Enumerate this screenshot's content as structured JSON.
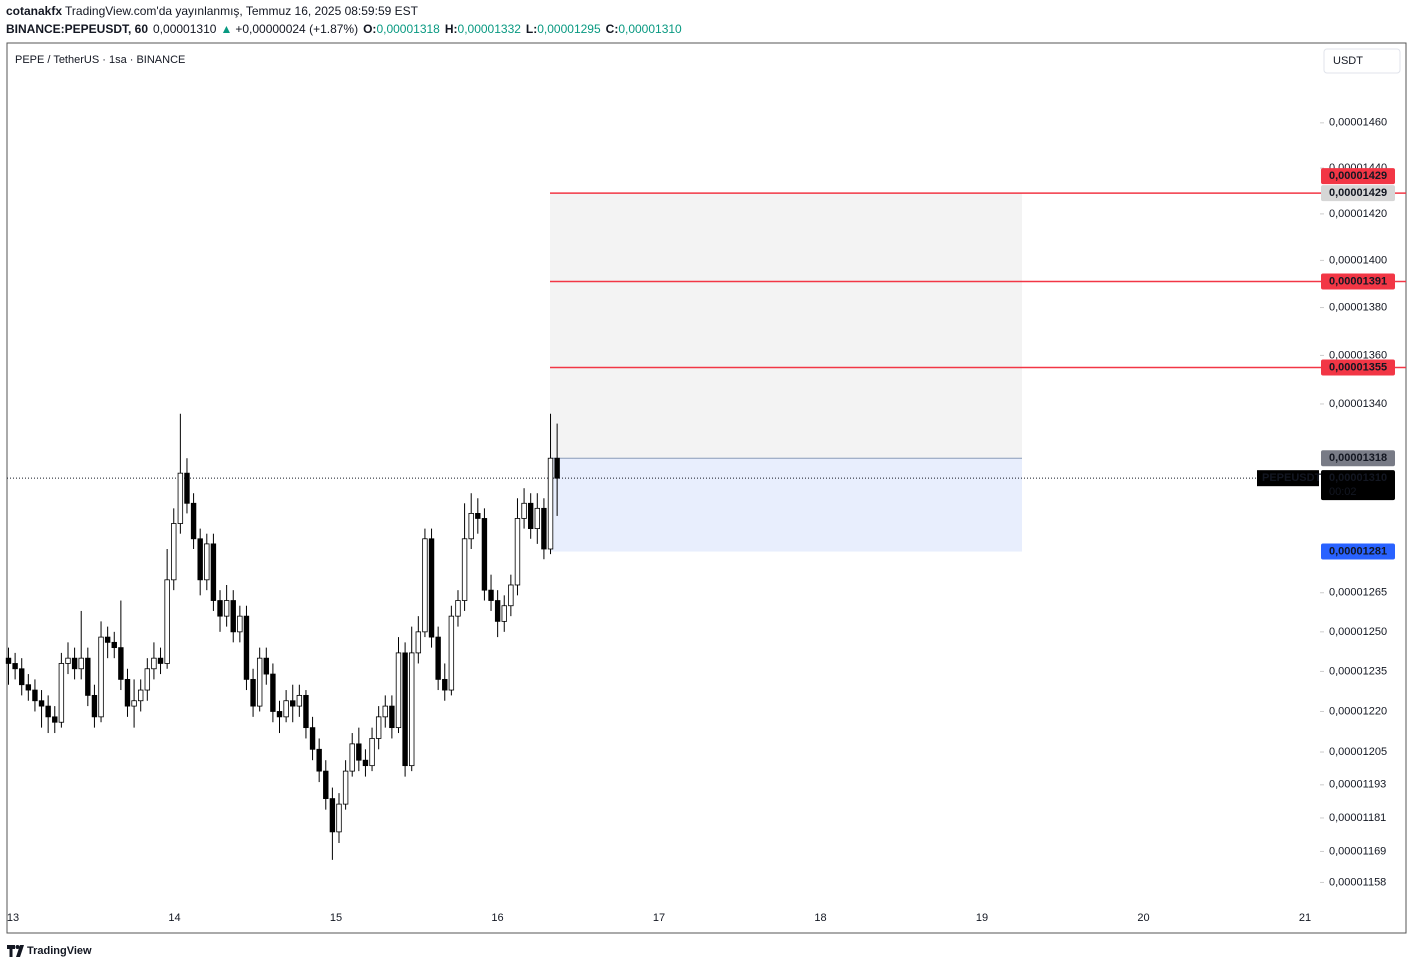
{
  "header": {
    "author": "cotanakfx",
    "published": "TradingView.com'da yayınlanmış, Temmuz 16, 2025 08:59:59 EST",
    "symbol": "BINANCE:PEPEUSDT, 60",
    "last": "0,00001310",
    "arrow": "▲",
    "change": "+0,00000024 (+1.87%)",
    "o_label": "O:",
    "o": "0,00001318",
    "h_label": "H:",
    "h": "0,00001332",
    "l_label": "L:",
    "l": "0,00001295",
    "c_label": "C:",
    "c": "0,00001310"
  },
  "chart_data": {
    "type": "candlestick",
    "title": "PEPE / TetherUS · 1sa · BINANCE",
    "currency": "USDT",
    "log_scale": true,
    "ylim": [
      1.149e-05,
      1.496e-05
    ],
    "yticks": [
      {
        "value": 1.46e-05,
        "label": "0,00001460"
      },
      {
        "value": 1.44e-05,
        "label": "0,00001440"
      },
      {
        "value": 1.42e-05,
        "label": "0,00001420"
      },
      {
        "value": 1.4e-05,
        "label": "0,00001400"
      },
      {
        "value": 1.38e-05,
        "label": "0,00001380"
      },
      {
        "value": 1.36e-05,
        "label": "0,00001360"
      },
      {
        "value": 1.34e-05,
        "label": "0,00001340"
      },
      {
        "value": 1.265e-05,
        "label": "0,00001265"
      },
      {
        "value": 1.25e-05,
        "label": "0,00001250"
      },
      {
        "value": 1.235e-05,
        "label": "0,00001235"
      },
      {
        "value": 1.22e-05,
        "label": "0,00001220"
      },
      {
        "value": 1.205e-05,
        "label": "0,00001205"
      },
      {
        "value": 1.193e-05,
        "label": "0,00001193"
      },
      {
        "value": 1.181e-05,
        "label": "0,00001181"
      },
      {
        "value": 1.169e-05,
        "label": "0,00001169"
      },
      {
        "value": 1.158e-05,
        "label": "0,00001158"
      }
    ],
    "xticks": [
      "13",
      "14",
      "15",
      "16",
      "17",
      "18",
      "19",
      "20",
      "21"
    ],
    "up_color": "#ffffff",
    "down_color": "#000000",
    "candles": [
      [
        1.24e-05,
        1.244e-05,
        1.23e-05,
        1.238e-05
      ],
      [
        1.238e-05,
        1.242e-05,
        1.232e-05,
        1.236e-05
      ],
      [
        1.236e-05,
        1.24e-05,
        1.226e-05,
        1.23e-05
      ],
      [
        1.23e-05,
        1.234e-05,
        1.224e-05,
        1.228e-05
      ],
      [
        1.228e-05,
        1.232e-05,
        1.22e-05,
        1.224e-05
      ],
      [
        1.224e-05,
        1.228e-05,
        1.214e-05,
        1.222e-05
      ],
      [
        1.222e-05,
        1.226e-05,
        1.212e-05,
        1.218e-05
      ],
      [
        1.218e-05,
        1.222e-05,
        1.212e-05,
        1.216e-05
      ],
      [
        1.216e-05,
        1.242e-05,
        1.214e-05,
        1.238e-05
      ],
      [
        1.238e-05,
        1.246e-05,
        1.234e-05,
        1.24e-05
      ],
      [
        1.24e-05,
        1.244e-05,
        1.232e-05,
        1.236e-05
      ],
      [
        1.236e-05,
        1.258e-05,
        1.232e-05,
        1.24e-05
      ],
      [
        1.24e-05,
        1.244e-05,
        1.222e-05,
        1.226e-05
      ],
      [
        1.226e-05,
        1.23e-05,
        1.214e-05,
        1.218e-05
      ],
      [
        1.218e-05,
        1.254e-05,
        1.216e-05,
        1.248e-05
      ],
      [
        1.248e-05,
        1.252e-05,
        1.24e-05,
        1.246e-05
      ],
      [
        1.246e-05,
        1.25e-05,
        1.24e-05,
        1.244e-05
      ],
      [
        1.244e-05,
        1.262e-05,
        1.228e-05,
        1.232e-05
      ],
      [
        1.232e-05,
        1.236e-05,
        1.218e-05,
        1.222e-05
      ],
      [
        1.222e-05,
        1.232e-05,
        1.214e-05,
        1.224e-05
      ],
      [
        1.224e-05,
        1.232e-05,
        1.22e-05,
        1.228e-05
      ],
      [
        1.228e-05,
        1.24e-05,
        1.224e-05,
        1.236e-05
      ],
      [
        1.236e-05,
        1.246e-05,
        1.232e-05,
        1.24e-05
      ],
      [
        1.24e-05,
        1.244e-05,
        1.234e-05,
        1.238e-05
      ],
      [
        1.238e-05,
        1.282e-05,
        1.236e-05,
        1.27e-05
      ],
      [
        1.27e-05,
        1.298e-05,
        1.266e-05,
        1.292e-05
      ],
      [
        1.292e-05,
        1.336e-05,
        1.288e-05,
        1.312e-05
      ],
      [
        1.312e-05,
        1.318e-05,
        1.296e-05,
        1.3e-05
      ],
      [
        1.3e-05,
        1.304e-05,
        1.282e-05,
        1.286e-05
      ],
      [
        1.286e-05,
        1.29e-05,
        1.264e-05,
        1.27e-05
      ],
      [
        1.27e-05,
        1.288e-05,
        1.266e-05,
        1.284e-05
      ],
      [
        1.284e-05,
        1.288e-05,
        1.258e-05,
        1.262e-05
      ],
      [
        1.262e-05,
        1.266e-05,
        1.25e-05,
        1.256e-05
      ],
      [
        1.256e-05,
        1.268e-05,
        1.252e-05,
        1.262e-05
      ],
      [
        1.262e-05,
        1.266e-05,
        1.246e-05,
        1.25e-05
      ],
      [
        1.25e-05,
        1.26e-05,
        1.246e-05,
        1.256e-05
      ],
      [
        1.256e-05,
        1.26e-05,
        1.228e-05,
        1.232e-05
      ],
      [
        1.232e-05,
        1.236e-05,
        1.218e-05,
        1.222e-05
      ],
      [
        1.222e-05,
        1.244e-05,
        1.22e-05,
        1.24e-05
      ],
      [
        1.24e-05,
        1.244e-05,
        1.23e-05,
        1.234e-05
      ],
      [
        1.234e-05,
        1.238e-05,
        1.216e-05,
        1.22e-05
      ],
      [
        1.22e-05,
        1.224e-05,
        1.212e-05,
        1.218e-05
      ],
      [
        1.218e-05,
        1.228e-05,
        1.216e-05,
        1.224e-05
      ],
      [
        1.224e-05,
        1.23e-05,
        1.216e-05,
        1.222e-05
      ],
      [
        1.222e-05,
        1.23e-05,
        1.218e-05,
        1.226e-05
      ],
      [
        1.226e-05,
        1.228e-05,
        1.21e-05,
        1.214e-05
      ],
      [
        1.214e-05,
        1.218e-05,
        1.202e-05,
        1.206e-05
      ],
      [
        1.206e-05,
        1.21e-05,
        1.194e-05,
        1.198e-05
      ],
      [
        1.198e-05,
        1.202e-05,
        1.184e-05,
        1.188e-05
      ],
      [
        1.188e-05,
        1.192e-05,
        1.166e-05,
        1.176e-05
      ],
      [
        1.176e-05,
        1.19e-05,
        1.172e-05,
        1.186e-05
      ],
      [
        1.186e-05,
        1.202e-05,
        1.184e-05,
        1.198e-05
      ],
      [
        1.198e-05,
        1.212e-05,
        1.196e-05,
        1.208e-05
      ],
      [
        1.208e-05,
        1.214e-05,
        1.198e-05,
        1.202e-05
      ],
      [
        1.202e-05,
        1.206e-05,
        1.196e-05,
        1.2e-05
      ],
      [
        1.2e-05,
        1.214e-05,
        1.198e-05,
        1.21e-05
      ],
      [
        1.21e-05,
        1.222e-05,
        1.206e-05,
        1.218e-05
      ],
      [
        1.218e-05,
        1.226e-05,
        1.214e-05,
        1.222e-05
      ],
      [
        1.222e-05,
        1.226e-05,
        1.21e-05,
        1.214e-05
      ],
      [
        1.214e-05,
        1.248e-05,
        1.212e-05,
        1.242e-05
      ],
      [
        1.242e-05,
        1.246e-05,
        1.196e-05,
        1.2e-05
      ],
      [
        1.2e-05,
        1.252e-05,
        1.198e-05,
        1.242e-05
      ],
      [
        1.242e-05,
        1.256e-05,
        1.238e-05,
        1.25e-05
      ],
      [
        1.25e-05,
        1.29e-05,
        1.248e-05,
        1.286e-05
      ],
      [
        1.286e-05,
        1.29e-05,
        1.244e-05,
        1.248e-05
      ],
      [
        1.248e-05,
        1.252e-05,
        1.228e-05,
        1.232e-05
      ],
      [
        1.232e-05,
        1.238e-05,
        1.224e-05,
        1.228e-05
      ],
      [
        1.228e-05,
        1.26e-05,
        1.226e-05,
        1.256e-05
      ],
      [
        1.256e-05,
        1.266e-05,
        1.252e-05,
        1.262e-05
      ],
      [
        1.262e-05,
        1.3e-05,
        1.258e-05,
        1.286e-05
      ],
      [
        1.286e-05,
        1.304e-05,
        1.282e-05,
        1.296e-05
      ],
      [
        1.296e-05,
        1.302e-05,
        1.288e-05,
        1.294e-05
      ],
      [
        1.294e-05,
        1.298e-05,
        1.262e-05,
        1.266e-05
      ],
      [
        1.266e-05,
        1.272e-05,
        1.258e-05,
        1.262e-05
      ],
      [
        1.262e-05,
        1.266e-05,
        1.248e-05,
        1.254e-05
      ],
      [
        1.254e-05,
        1.264e-05,
        1.25e-05,
        1.26e-05
      ],
      [
        1.26e-05,
        1.272e-05,
        1.256e-05,
        1.268e-05
      ],
      [
        1.268e-05,
        1.302e-05,
        1.264e-05,
        1.294e-05
      ],
      [
        1.294e-05,
        1.306e-05,
        1.29e-05,
        1.3e-05
      ],
      [
        1.3e-05,
        1.304e-05,
        1.286e-05,
        1.29e-05
      ],
      [
        1.29e-05,
        1.304e-05,
        1.284e-05,
        1.298e-05
      ],
      [
        1.298e-05,
        1.302e-05,
        1.278e-05,
        1.282e-05
      ],
      [
        1.282e-05,
        1.336e-05,
        1.28e-05,
        1.318e-05
      ],
      [
        1.318e-05,
        1.332e-05,
        1.295e-05,
        1.31e-05
      ]
    ],
    "level_color": "#f23645",
    "levels": [
      {
        "value": 1.429e-05,
        "label": "0,00001429"
      },
      {
        "value": 1.391e-05,
        "label": "0,00001391"
      },
      {
        "value": 1.355e-05,
        "label": "0,00001355"
      }
    ],
    "zone": {
      "target": {
        "value": 1.429e-05,
        "label": "0,00001429"
      },
      "entry": {
        "value": 1.318e-05,
        "label": "0,00001318"
      },
      "stop": {
        "value": 1.281e-05,
        "label": "0,00001281"
      },
      "target_color": "#f3f3f3",
      "stop_color": "#e8eefd",
      "stop_label_color": "#2962ff"
    },
    "last_price": {
      "value": 1.31e-05,
      "label": "0,00001310",
      "symbol": "PEPEUSDT",
      "countdown": "00:02"
    }
  },
  "footer": {
    "brand": "TradingView"
  }
}
